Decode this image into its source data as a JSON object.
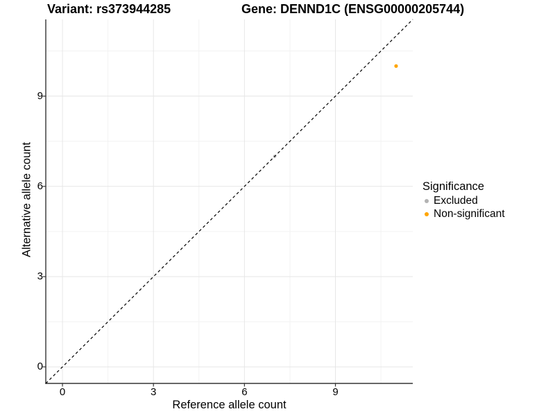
{
  "chart_data": {
    "type": "scatter",
    "title_left": "Variant: rs373944285",
    "title_right": "Gene: DENND1C (ENSG00000205744)",
    "xlabel": "Reference allele count",
    "ylabel": "Alternative allele count",
    "xlim": [
      -0.55,
      11.55
    ],
    "ylim": [
      -0.55,
      11.55
    ],
    "x_ticks": [
      0,
      3,
      6,
      9
    ],
    "y_ticks": [
      0,
      3,
      6,
      9
    ],
    "x_minor_ticks": [
      1.5,
      4.5,
      7.5,
      10.5
    ],
    "y_minor_ticks": [
      1.5,
      4.5,
      7.5,
      10.5
    ],
    "grid": "major-and-minor",
    "legend": {
      "title": "Significance",
      "position": "right"
    },
    "identity_line": {
      "style": "dashed",
      "color": "#000000",
      "from": [
        -0.55,
        -0.55
      ],
      "to": [
        11.55,
        11.55
      ]
    },
    "series": [
      {
        "name": "Excluded",
        "color": "#b3b3b3",
        "point_radius": 2.3,
        "points": [
          {
            "x": 7,
            "y": 7
          }
        ]
      },
      {
        "name": "Non-significant",
        "color": "#ffa500",
        "point_radius": 2.6,
        "points": [
          {
            "x": 11,
            "y": 10
          }
        ]
      }
    ],
    "style": {
      "background": "#ffffff",
      "grid_major_color": "#e6e6e6",
      "grid_minor_color": "#f2f2f2",
      "axis_line_color": "#333333",
      "tick_mark_color": "#333333",
      "text_color": "#000000"
    }
  }
}
